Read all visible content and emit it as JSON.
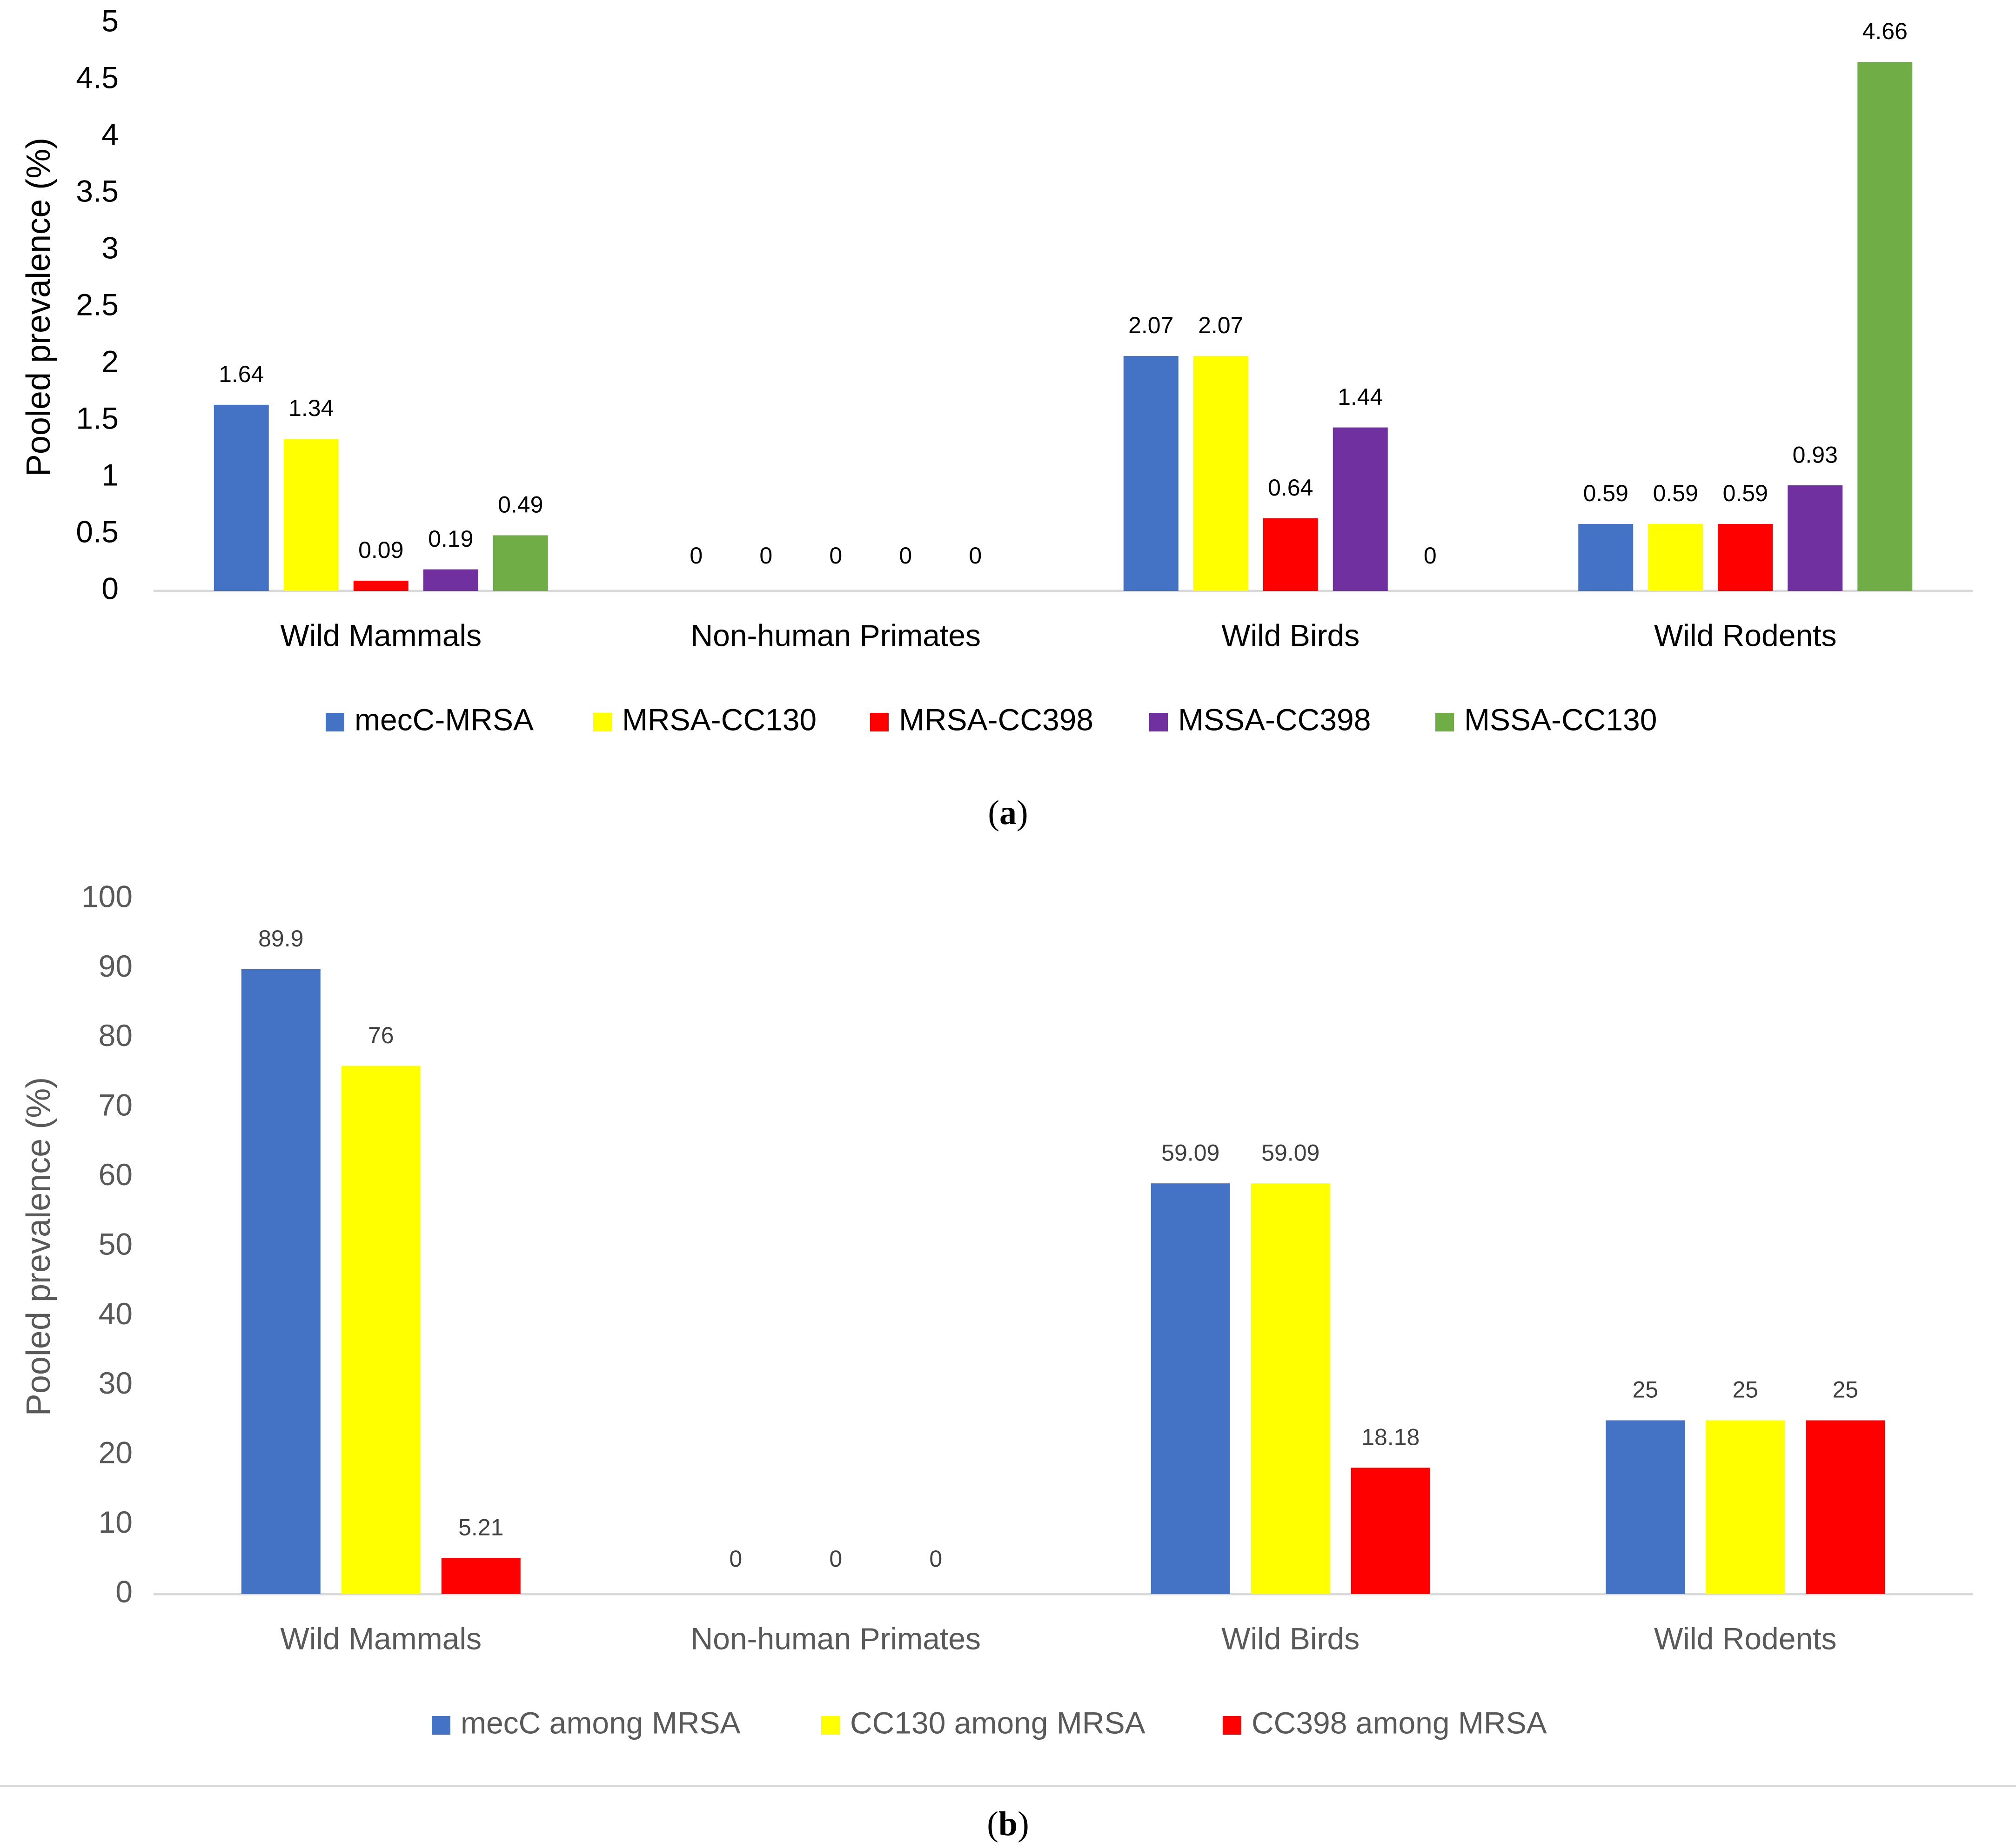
{
  "chart_data": [
    {
      "type": "bar",
      "panel_label": "a",
      "title": "",
      "xlabel": "",
      "ylabel": "Pooled prevalence (%)",
      "ylim": [
        0,
        5
      ],
      "yticks": [
        "0",
        "0.5",
        "1",
        "1.5",
        "2",
        "2.5",
        "3",
        "3.5",
        "4",
        "4.5",
        "5"
      ],
      "categories": [
        "Wild Mammals",
        "Non-human Primates",
        "Wild Birds",
        "Wild Rodents"
      ],
      "series": [
        {
          "name": "mecC-MRSA",
          "color": "#4472c4",
          "values": [
            1.64,
            0,
            2.07,
            0.59
          ],
          "labels": [
            "1.64",
            "0",
            "2.07",
            "0.59"
          ]
        },
        {
          "name": "MRSA-CC130",
          "color": "#ffff00",
          "values": [
            1.34,
            0,
            2.07,
            0.59
          ],
          "labels": [
            "1.34",
            "0",
            "2.07",
            "0.59"
          ]
        },
        {
          "name": "MRSA-CC398",
          "color": "#ff0000",
          "values": [
            0.09,
            0,
            0.64,
            0.59
          ],
          "labels": [
            "0.09",
            "0",
            "0.64",
            "0.59"
          ]
        },
        {
          "name": "MSSA-CC398",
          "color": "#7030a0",
          "values": [
            0.19,
            0,
            1.44,
            0.93
          ],
          "labels": [
            "0.19",
            "0",
            "1.44",
            "0.93"
          ]
        },
        {
          "name": "MSSA-CC130",
          "color": "#70ad47",
          "values": [
            0.49,
            0,
            0,
            4.66
          ],
          "labels": [
            "0.49",
            "0",
            "0",
            "4.66"
          ]
        }
      ],
      "grid": false,
      "legend": "bottom"
    },
    {
      "type": "bar",
      "panel_label": "b",
      "title": "",
      "xlabel": "",
      "ylabel": "Pooled prevalence (%)",
      "ylim": [
        0,
        100
      ],
      "yticks": [
        "0",
        "10",
        "20",
        "30",
        "40",
        "50",
        "60",
        "70",
        "80",
        "90",
        "100"
      ],
      "categories": [
        "Wild Mammals",
        "Non-human Primates",
        "Wild Birds",
        "Wild Rodents"
      ],
      "series": [
        {
          "name": "mecC among MRSA",
          "color": "#4472c4",
          "values": [
            89.9,
            0,
            59.09,
            25
          ],
          "labels": [
            "89.9",
            "0",
            "59.09",
            "25"
          ]
        },
        {
          "name": "CC130 among MRSA",
          "color": "#ffff00",
          "values": [
            76,
            0,
            59.09,
            25
          ],
          "labels": [
            "76",
            "0",
            "59.09",
            "25"
          ]
        },
        {
          "name": "CC398 among MRSA",
          "color": "#ff0000",
          "values": [
            5.21,
            0,
            18.18,
            25
          ],
          "labels": [
            "5.21",
            "0",
            "18.18",
            "25"
          ]
        }
      ],
      "grid": false,
      "legend": "bottom"
    }
  ]
}
